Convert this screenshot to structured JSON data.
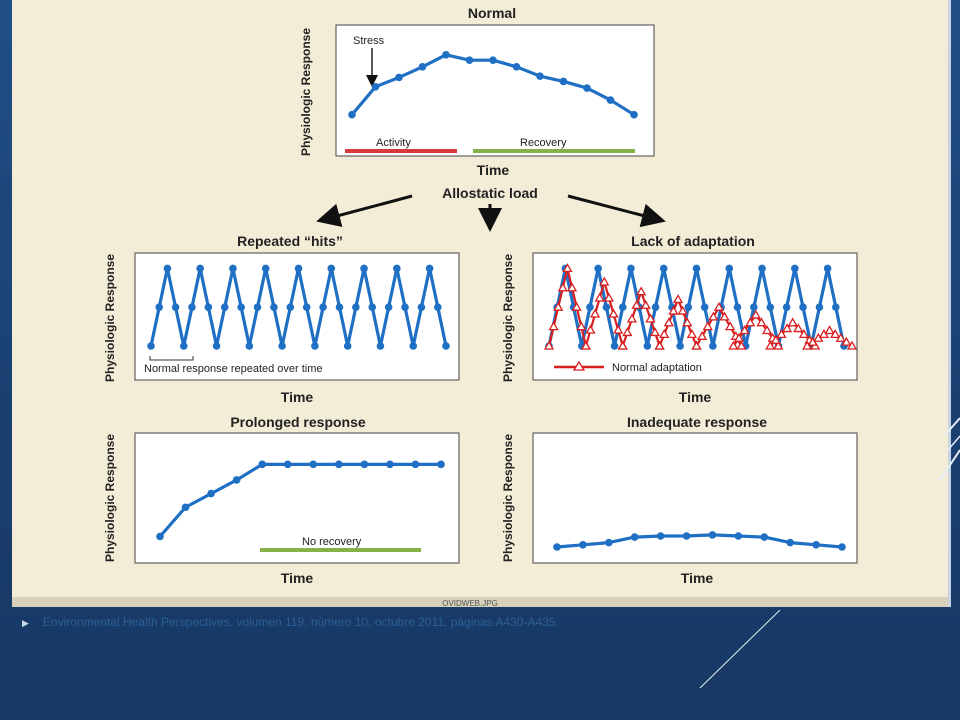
{
  "figure": {
    "credit": "OVIDWEB.JPG",
    "center_label": "Allostatic load",
    "axis": {
      "y": "Physiologic Response",
      "x": "Time"
    },
    "panels": {
      "normal": {
        "title": "Normal",
        "stress": "Stress",
        "activity": "Activity",
        "recovery": "Recovery"
      },
      "repeated": {
        "title": "Repeated “hits”",
        "note": "Normal response repeated over time"
      },
      "lack": {
        "title": "Lack of adaptation",
        "legend": "Normal adaptation"
      },
      "prolonged": {
        "title": "Prolonged response",
        "note": "No recovery"
      },
      "inadequate": {
        "title": "Inadequate response"
      }
    },
    "colors": {
      "blue_series": "#1f6fc4",
      "red_series": "#d81e1e",
      "activity_bar": "#d63a3a",
      "recovery_bar": "#86b04a"
    }
  },
  "chart_data": [
    {
      "type": "line",
      "title": "Normal",
      "ylabel": "Physiologic Response",
      "xlabel": "Time",
      "series": [
        {
          "values": [
            1,
            3.1,
            3.8,
            4.6,
            5.5,
            5.1,
            5.1,
            4.6,
            3.9,
            3.5,
            3.0,
            2.1,
            1.0
          ]
        }
      ]
    },
    {
      "type": "line",
      "title": "Repeated “hits”",
      "ylabel": "Physiologic Response",
      "xlabel": "Time",
      "series": [
        {
          "values": [
            0,
            1,
            2,
            3,
            4,
            3,
            2,
            1,
            0,
            1,
            2,
            3,
            4,
            3,
            2,
            1,
            0,
            1,
            2,
            3,
            4,
            3,
            2,
            1,
            0,
            1,
            2,
            3,
            4,
            3,
            2,
            1,
            0,
            1,
            2,
            3,
            4,
            3,
            2,
            1,
            0,
            1,
            2,
            3,
            4,
            3,
            2,
            1,
            0,
            1,
            2,
            3,
            4,
            3,
            2,
            1,
            0,
            1,
            2,
            3,
            4,
            3,
            2,
            1,
            0,
            1,
            2,
            3,
            4,
            3,
            2,
            1,
            0
          ]
        }
      ]
    },
    {
      "type": "line",
      "title": "Lack of adaptation",
      "ylabel": "Physiologic Response",
      "xlabel": "Time",
      "series": [
        {
          "values": [
            0,
            1,
            2,
            3,
            4,
            3,
            2,
            1,
            0,
            1,
            2,
            3,
            4,
            3,
            2,
            1,
            0,
            1,
            2,
            3,
            4,
            3,
            2,
            1,
            0,
            1,
            2,
            3,
            4,
            3,
            2,
            1,
            0,
            1,
            2,
            3,
            4,
            3,
            2,
            1,
            0,
            1,
            2,
            3,
            4,
            3,
            2,
            1,
            0,
            1,
            2,
            3,
            4,
            3,
            2,
            1,
            0,
            1,
            2,
            3,
            4,
            3,
            2,
            1,
            0,
            1,
            2,
            3,
            4,
            3,
            2,
            1,
            0
          ]
        },
        {
          "name": "Normal adaptation",
          "peaks": [
            4,
            3.3,
            2.8,
            2.4,
            2.0,
            1.6,
            1.2,
            0.8
          ]
        }
      ]
    },
    {
      "type": "line",
      "title": "Prolonged response",
      "ylabel": "Physiologic Response",
      "xlabel": "Time",
      "series": [
        {
          "values": [
            1,
            2.5,
            3.2,
            3.9,
            4.7,
            4.7,
            4.7,
            4.7,
            4.7,
            4.7,
            4.7,
            4.7
          ]
        }
      ]
    },
    {
      "type": "line",
      "title": "Inadequate response",
      "ylabel": "Physiologic Response",
      "xlabel": "Time",
      "series": [
        {
          "values": [
            1.0,
            1.2,
            1.4,
            1.9,
            2.0,
            2.0,
            2.1,
            2.0,
            1.9,
            1.4,
            1.2,
            1.0
          ]
        }
      ]
    }
  ],
  "footer": {
    "citation": "Environmental Health Perspectives, volumen 119, número 10, octubre 2011, páginas A430-A435."
  }
}
